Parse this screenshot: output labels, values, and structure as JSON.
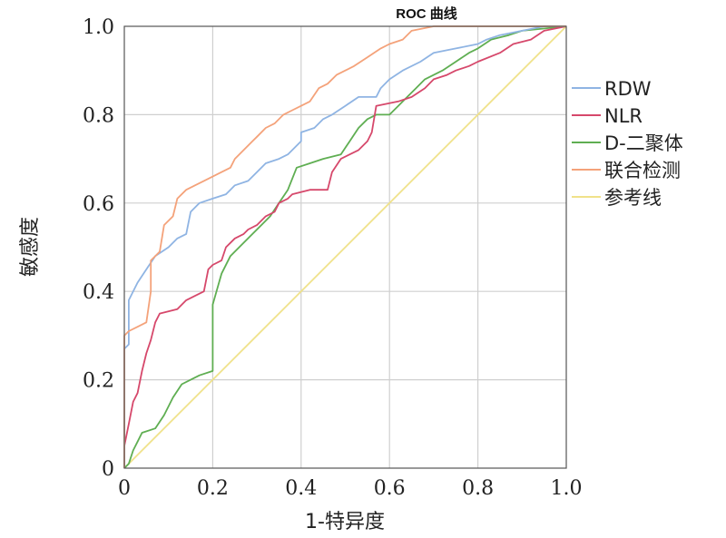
{
  "chart_data": {
    "type": "line",
    "title": "ROC 曲线",
    "xlabel": "1-特异度",
    "ylabel": "敏感度",
    "xlim": [
      0,
      1
    ],
    "ylim": [
      0,
      1
    ],
    "xticks": [
      "0",
      "0.2",
      "0.4",
      "0.6",
      "0.8",
      "1.0"
    ],
    "yticks": [
      "0",
      "0.2",
      "0.4",
      "0.6",
      "0.8",
      "1.0"
    ],
    "grid": true,
    "legend_position": "right",
    "series": [
      {
        "name": "RDW",
        "color": "#8fb4e3",
        "points": [
          [
            0,
            0
          ],
          [
            0,
            0.27
          ],
          [
            0.01,
            0.28
          ],
          [
            0.01,
            0.38
          ],
          [
            0.03,
            0.42
          ],
          [
            0.05,
            0.45
          ],
          [
            0.07,
            0.48
          ],
          [
            0.1,
            0.5
          ],
          [
            0.12,
            0.52
          ],
          [
            0.14,
            0.53
          ],
          [
            0.15,
            0.58
          ],
          [
            0.17,
            0.6
          ],
          [
            0.2,
            0.61
          ],
          [
            0.23,
            0.62
          ],
          [
            0.25,
            0.64
          ],
          [
            0.28,
            0.65
          ],
          [
            0.3,
            0.67
          ],
          [
            0.32,
            0.69
          ],
          [
            0.35,
            0.7
          ],
          [
            0.37,
            0.71
          ],
          [
            0.4,
            0.74
          ],
          [
            0.4,
            0.76
          ],
          [
            0.43,
            0.77
          ],
          [
            0.45,
            0.79
          ],
          [
            0.47,
            0.8
          ],
          [
            0.5,
            0.82
          ],
          [
            0.53,
            0.84
          ],
          [
            0.57,
            0.84
          ],
          [
            0.58,
            0.86
          ],
          [
            0.6,
            0.88
          ],
          [
            0.63,
            0.9
          ],
          [
            0.67,
            0.92
          ],
          [
            0.7,
            0.94
          ],
          [
            0.75,
            0.95
          ],
          [
            0.8,
            0.96
          ],
          [
            0.82,
            0.97
          ],
          [
            0.85,
            0.98
          ],
          [
            0.9,
            0.99
          ],
          [
            0.95,
            1.0
          ],
          [
            1.0,
            1.0
          ]
        ]
      },
      {
        "name": "NLR",
        "color": "#d6486b",
        "points": [
          [
            0,
            0
          ],
          [
            0,
            0.05
          ],
          [
            0.01,
            0.1
          ],
          [
            0.02,
            0.15
          ],
          [
            0.03,
            0.17
          ],
          [
            0.04,
            0.22
          ],
          [
            0.05,
            0.26
          ],
          [
            0.06,
            0.29
          ],
          [
            0.07,
            0.33
          ],
          [
            0.08,
            0.35
          ],
          [
            0.12,
            0.36
          ],
          [
            0.14,
            0.38
          ],
          [
            0.16,
            0.39
          ],
          [
            0.18,
            0.4
          ],
          [
            0.19,
            0.45
          ],
          [
            0.2,
            0.46
          ],
          [
            0.22,
            0.47
          ],
          [
            0.23,
            0.5
          ],
          [
            0.25,
            0.52
          ],
          [
            0.27,
            0.53
          ],
          [
            0.28,
            0.54
          ],
          [
            0.3,
            0.55
          ],
          [
            0.32,
            0.57
          ],
          [
            0.34,
            0.58
          ],
          [
            0.35,
            0.6
          ],
          [
            0.37,
            0.61
          ],
          [
            0.38,
            0.62
          ],
          [
            0.42,
            0.63
          ],
          [
            0.46,
            0.63
          ],
          [
            0.47,
            0.67
          ],
          [
            0.49,
            0.7
          ],
          [
            0.51,
            0.71
          ],
          [
            0.53,
            0.72
          ],
          [
            0.55,
            0.74
          ],
          [
            0.56,
            0.76
          ],
          [
            0.57,
            0.82
          ],
          [
            0.62,
            0.83
          ],
          [
            0.65,
            0.84
          ],
          [
            0.68,
            0.86
          ],
          [
            0.7,
            0.88
          ],
          [
            0.73,
            0.89
          ],
          [
            0.75,
            0.9
          ],
          [
            0.78,
            0.91
          ],
          [
            0.8,
            0.92
          ],
          [
            0.85,
            0.94
          ],
          [
            0.88,
            0.96
          ],
          [
            0.92,
            0.97
          ],
          [
            0.95,
            0.99
          ],
          [
            1.0,
            1.0
          ]
        ]
      },
      {
        "name": "D-二聚体",
        "color": "#5fae52",
        "points": [
          [
            0,
            0
          ],
          [
            0.01,
            0.01
          ],
          [
            0.02,
            0.04
          ],
          [
            0.03,
            0.06
          ],
          [
            0.04,
            0.08
          ],
          [
            0.07,
            0.09
          ],
          [
            0.09,
            0.12
          ],
          [
            0.11,
            0.16
          ],
          [
            0.13,
            0.19
          ],
          [
            0.15,
            0.2
          ],
          [
            0.17,
            0.21
          ],
          [
            0.2,
            0.22
          ],
          [
            0.2,
            0.37
          ],
          [
            0.22,
            0.44
          ],
          [
            0.24,
            0.48
          ],
          [
            0.26,
            0.5
          ],
          [
            0.29,
            0.53
          ],
          [
            0.31,
            0.55
          ],
          [
            0.33,
            0.57
          ],
          [
            0.35,
            0.6
          ],
          [
            0.37,
            0.63
          ],
          [
            0.39,
            0.68
          ],
          [
            0.42,
            0.69
          ],
          [
            0.45,
            0.7
          ],
          [
            0.49,
            0.71
          ],
          [
            0.51,
            0.74
          ],
          [
            0.53,
            0.77
          ],
          [
            0.55,
            0.79
          ],
          [
            0.57,
            0.8
          ],
          [
            0.6,
            0.8
          ],
          [
            0.62,
            0.82
          ],
          [
            0.64,
            0.84
          ],
          [
            0.66,
            0.86
          ],
          [
            0.68,
            0.88
          ],
          [
            0.72,
            0.9
          ],
          [
            0.75,
            0.92
          ],
          [
            0.78,
            0.94
          ],
          [
            0.8,
            0.95
          ],
          [
            0.83,
            0.97
          ],
          [
            0.87,
            0.98
          ],
          [
            0.9,
            0.99
          ],
          [
            1.0,
            1.0
          ]
        ]
      },
      {
        "name": "联合检测",
        "color": "#f4a27a",
        "points": [
          [
            0,
            0
          ],
          [
            0,
            0.3
          ],
          [
            0.01,
            0.31
          ],
          [
            0.03,
            0.32
          ],
          [
            0.05,
            0.33
          ],
          [
            0.06,
            0.4
          ],
          [
            0.06,
            0.47
          ],
          [
            0.08,
            0.49
          ],
          [
            0.09,
            0.55
          ],
          [
            0.11,
            0.57
          ],
          [
            0.12,
            0.61
          ],
          [
            0.14,
            0.63
          ],
          [
            0.16,
            0.64
          ],
          [
            0.18,
            0.65
          ],
          [
            0.2,
            0.66
          ],
          [
            0.22,
            0.67
          ],
          [
            0.24,
            0.68
          ],
          [
            0.25,
            0.7
          ],
          [
            0.27,
            0.72
          ],
          [
            0.29,
            0.74
          ],
          [
            0.3,
            0.75
          ],
          [
            0.32,
            0.77
          ],
          [
            0.34,
            0.78
          ],
          [
            0.36,
            0.8
          ],
          [
            0.38,
            0.81
          ],
          [
            0.4,
            0.82
          ],
          [
            0.42,
            0.83
          ],
          [
            0.44,
            0.86
          ],
          [
            0.46,
            0.87
          ],
          [
            0.48,
            0.89
          ],
          [
            0.5,
            0.9
          ],
          [
            0.52,
            0.91
          ],
          [
            0.55,
            0.93
          ],
          [
            0.58,
            0.95
          ],
          [
            0.6,
            0.96
          ],
          [
            0.63,
            0.97
          ],
          [
            0.65,
            0.99
          ],
          [
            0.7,
            1.0
          ],
          [
            0.8,
            1.0
          ],
          [
            1.0,
            1.0
          ]
        ]
      },
      {
        "name": "参考线",
        "color": "#f0e28a",
        "points": [
          [
            0,
            0
          ],
          [
            1,
            1
          ]
        ]
      }
    ]
  }
}
